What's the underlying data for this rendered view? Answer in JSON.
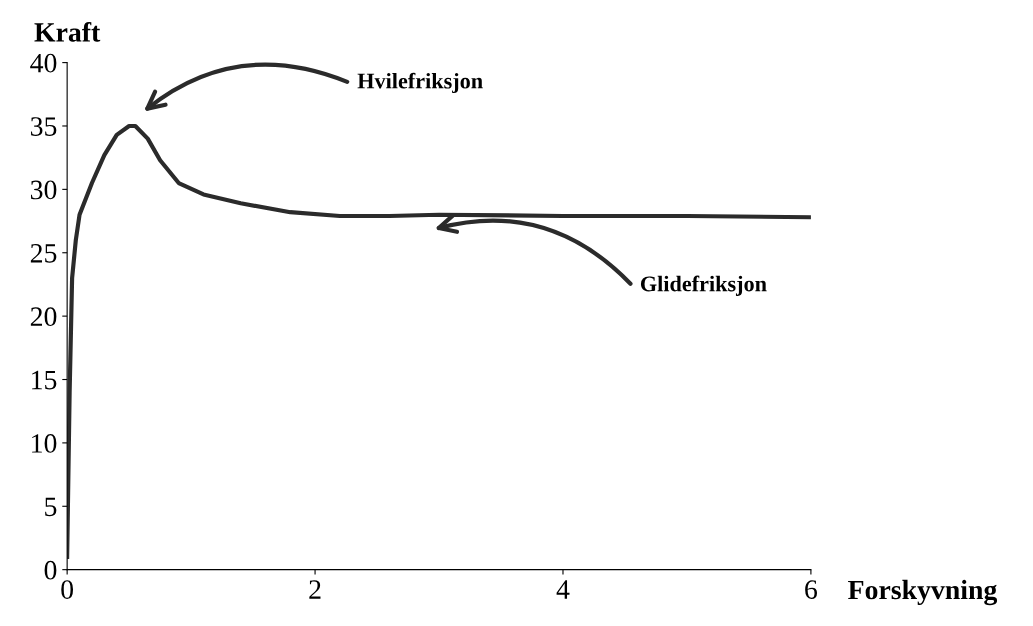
{
  "chart_data": {
    "type": "line",
    "xlabel": "Forskyvning",
    "ylabel": "Kraft",
    "x": [
      0,
      0.02,
      0.04,
      0.07,
      0.1,
      0.2,
      0.3,
      0.4,
      0.5,
      0.55,
      0.65,
      0.75,
      0.9,
      1.1,
      1.4,
      1.8,
      2.2,
      2.6,
      3,
      4,
      5,
      6
    ],
    "series": [
      {
        "color": "#2b2b2b",
        "values": [
          1,
          14,
          23,
          26,
          28,
          30.5,
          32.7,
          34.3,
          35,
          35,
          34,
          32.3,
          30.5,
          29.6,
          28.9,
          28.2,
          27.9,
          27.9,
          28,
          27.9,
          27.9,
          27.8
        ]
      }
    ],
    "xlim": [
      0,
      6
    ],
    "ylim": [
      0,
      40
    ],
    "xticks": [
      0,
      2,
      4,
      6
    ],
    "yticks": [
      0,
      5,
      10,
      15,
      20,
      25,
      30,
      35,
      40
    ],
    "grid": false,
    "legend": false,
    "marker": "none",
    "line_style": "solid",
    "annotations": [
      "Hvilefriksjon",
      "Glidefriksjon"
    ]
  }
}
